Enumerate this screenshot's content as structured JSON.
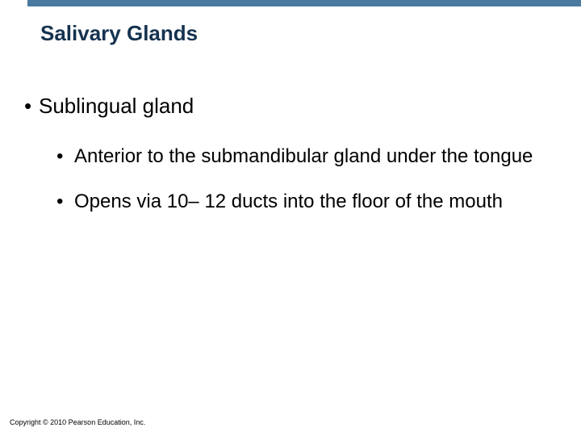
{
  "colors": {
    "top_bar": "#4a7aa0",
    "title_text": "#15324f",
    "body_text": "#000000",
    "copyright_text": "#000000",
    "background": "#ffffff"
  },
  "typography": {
    "title_fontsize": 26,
    "title_weight": "bold",
    "l1_fontsize": 26,
    "l2_fontsize": 24,
    "copyright_fontsize": 9
  },
  "title": "Salivary Glands",
  "bullets": {
    "l1": {
      "text": "Sublingual gland"
    },
    "l2a": {
      "text": "Anterior to the submandibular gland under the tongue"
    },
    "l2b": {
      "text": "Opens via 10– 12 ducts into the floor of the mouth"
    }
  },
  "copyright": "Copyright © 2010 Pearson Education, Inc."
}
